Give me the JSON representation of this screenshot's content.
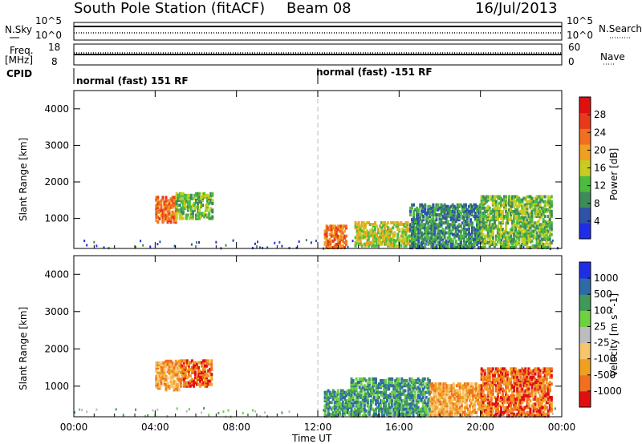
{
  "header": {
    "station": "South Pole Station (fitACF)",
    "beam": "Beam 08",
    "date": "16/Jul/2013"
  },
  "left_labels": {
    "nsky": "N.Sky",
    "freq_a": "Freq.",
    "freq_b": "[MHz]",
    "cpid": "CPID"
  },
  "right_labels": {
    "nsearch": "N.Search",
    "nave": "Nave"
  },
  "cpid_segments": [
    "normal (fast) 151 RF",
    "normal (fast) -151 RF"
  ],
  "colors": {
    "power_scale": [
      "#1f2ee6",
      "#2f52a8",
      "#3f8a5a",
      "#4dbb3f",
      "#c8cc20",
      "#f0a020",
      "#f07020",
      "#e83a1a",
      "#e01010"
    ],
    "velocity_scale": [
      "#e01010",
      "#f07020",
      "#f0a020",
      "#f6c46a",
      "#bdbdbd",
      "#6fd040",
      "#3f9a5a",
      "#2f6aa8",
      "#1f2ee6"
    ]
  },
  "chart_data": [
    {
      "type": "line",
      "name": "noise panel",
      "ylabel": "N.Sky",
      "y_ticks": [
        "10^5",
        "10^0"
      ],
      "right_label": "N.Search",
      "right_ticks": [
        "10^5",
        "10^0"
      ]
    },
    {
      "type": "line",
      "name": "frequency panel",
      "ylabel": "Freq. [MHz]",
      "y_ticks": [
        "18",
        "8"
      ],
      "right_label": "Nave",
      "right_ticks": [
        "60",
        "0"
      ]
    },
    {
      "type": "heatmap",
      "name": "power",
      "xlabel": "Time UT",
      "ylabel": "Slant Range [km]",
      "x_ticks": [
        "00:00",
        "04:00",
        "08:00",
        "12:00",
        "16:00",
        "20:00",
        "00:00"
      ],
      "x_hours": [
        0,
        4,
        8,
        12,
        16,
        20,
        24
      ],
      "y_ticks": [
        1000,
        2000,
        3000,
        4000
      ],
      "ylim": [
        180,
        4500
      ],
      "colorbar_label": "Power [dB]",
      "colorbar_ticks": [
        "4",
        "8",
        "12",
        "16",
        "20",
        "24",
        "28"
      ],
      "regions": [
        {
          "start_h": 4.0,
          "end_h": 5.0,
          "range": [
            900,
            1600
          ],
          "level": 6
        },
        {
          "start_h": 5.0,
          "end_h": 6.8,
          "range": [
            1000,
            1700
          ],
          "level": 3
        },
        {
          "start_h": 12.3,
          "end_h": 13.4,
          "range": [
            200,
            800
          ],
          "level": 6
        },
        {
          "start_h": 13.8,
          "end_h": 16.5,
          "range": [
            250,
            900
          ],
          "level": 4
        },
        {
          "start_h": 16.5,
          "end_h": 20.0,
          "range": [
            200,
            1400
          ],
          "level": 2
        },
        {
          "start_h": 20.0,
          "end_h": 23.5,
          "range": [
            200,
            1600
          ],
          "level": 3
        }
      ]
    },
    {
      "type": "heatmap",
      "name": "velocity",
      "xlabel": "Time UT",
      "ylabel": "Slant Range [km]",
      "x_ticks": [
        "00:00",
        "04:00",
        "08:00",
        "12:00",
        "16:00",
        "20:00",
        "00:00"
      ],
      "x_hours": [
        0,
        4,
        8,
        12,
        16,
        20,
        24
      ],
      "y_ticks": [
        1000,
        2000,
        3000,
        4000
      ],
      "ylim": [
        180,
        4500
      ],
      "colorbar_label": "Velocity [m s^-1]",
      "colorbar_ticks": [
        "-1000",
        "-500",
        "-100",
        "-25",
        "25",
        "100",
        "500",
        "1000"
      ],
      "regions": [
        {
          "start_h": 4.0,
          "end_h": 5.2,
          "range": [
            900,
            1700
          ],
          "level": 2
        },
        {
          "start_h": 5.2,
          "end_h": 6.8,
          "range": [
            1000,
            1700
          ],
          "level": 1
        },
        {
          "start_h": 12.3,
          "end_h": 13.6,
          "range": [
            200,
            900
          ],
          "level": 6
        },
        {
          "start_h": 13.6,
          "end_h": 17.5,
          "range": [
            200,
            1200
          ],
          "level": 6
        },
        {
          "start_h": 17.5,
          "end_h": 20.0,
          "range": [
            200,
            1100
          ],
          "level": 2
        },
        {
          "start_h": 20.0,
          "end_h": 23.5,
          "range": [
            200,
            1500
          ],
          "level": 1
        }
      ]
    }
  ]
}
